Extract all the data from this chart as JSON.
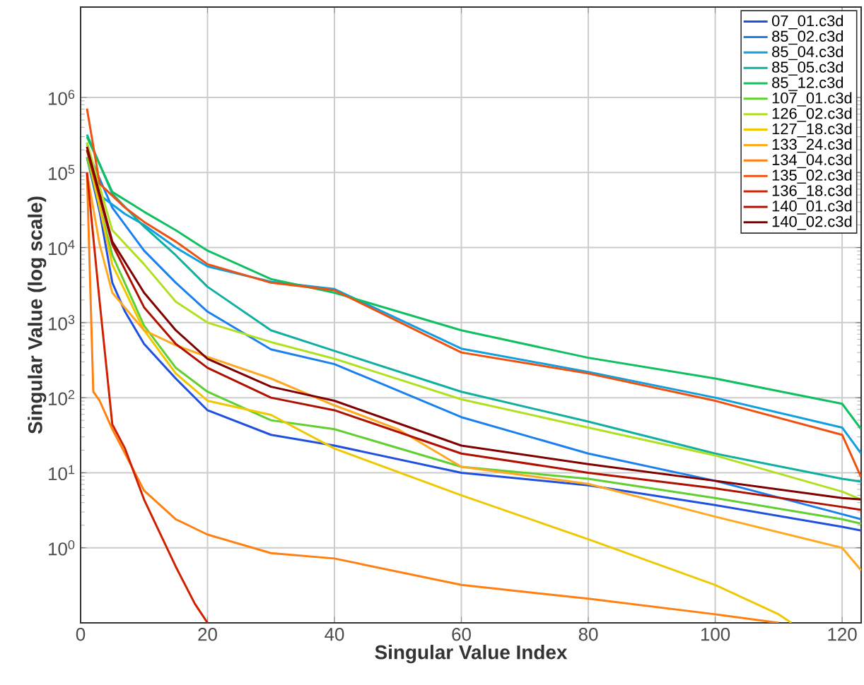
{
  "chart_data": {
    "type": "line",
    "xlabel": "Singular Value Index",
    "ylabel": "Singular Value (log scale)",
    "log": "y",
    "grid": true,
    "legend": "top right",
    "marker": "none",
    "line_style": "solid",
    "xlim": [
      0,
      123
    ],
    "ylim": [
      0.1,
      16000000
    ],
    "xticks": [
      0,
      20,
      40,
      60,
      80,
      100,
      120
    ],
    "yticks": [
      {
        "value": 1,
        "label": "10$^{0}$"
      },
      {
        "value": 10,
        "label": "10$^{1}$"
      },
      {
        "value": 100,
        "label": "10$^{2}$"
      },
      {
        "value": 1000,
        "label": "10$^{3}$"
      },
      {
        "value": 10000,
        "label": "10$^{4}$"
      },
      {
        "value": 100000,
        "label": "10$^{5}$"
      },
      {
        "value": 1000000,
        "label": "10$^{6}$"
      }
    ],
    "series": [
      {
        "name": "07_01.c3d",
        "color": "#2050e0",
        "x": [
          1,
          3,
          5,
          7,
          10,
          15,
          20,
          30,
          40,
          60,
          80,
          100,
          120,
          123
        ],
        "values": [
          160000,
          30000,
          3400,
          1400,
          520,
          180,
          68,
          32,
          23,
          10,
          6.8,
          3.7,
          1.9,
          1.7
        ]
      },
      {
        "name": "85_02.c3d",
        "color": "#1a80f0",
        "x": [
          1,
          5,
          10,
          15,
          20,
          30,
          40,
          60,
          80,
          100,
          120,
          123
        ],
        "values": [
          200000,
          34000,
          9100,
          3400,
          1400,
          440,
          280,
          55,
          18,
          7.8,
          2.8,
          2.4
        ]
      },
      {
        "name": "85_04.c3d",
        "color": "#10a0e0",
        "x": [
          1,
          3,
          7,
          10,
          15,
          20,
          30,
          40,
          60,
          80,
          100,
          120,
          123
        ],
        "values": [
          250000,
          50000,
          28000,
          20000,
          10000,
          5600,
          3500,
          2800,
          450,
          220,
          100,
          40,
          18
        ]
      },
      {
        "name": "85_05.c3d",
        "color": "#10b0a0",
        "x": [
          1,
          5,
          10,
          15,
          20,
          30,
          40,
          60,
          80,
          100,
          120,
          123
        ],
        "values": [
          320000,
          52000,
          19000,
          7900,
          3000,
          790,
          420,
          120,
          48,
          18,
          8.3,
          7.6
        ]
      },
      {
        "name": "85_12.c3d",
        "color": "#10c060",
        "x": [
          1,
          5,
          10,
          15,
          20,
          30,
          40,
          60,
          80,
          100,
          120,
          123
        ],
        "values": [
          300000,
          55000,
          30000,
          17000,
          9100,
          3800,
          2500,
          790,
          340,
          180,
          83,
          38
        ]
      },
      {
        "name": "107_01.c3d",
        "color": "#60d030",
        "x": [
          1,
          5,
          10,
          15,
          20,
          30,
          40,
          60,
          80,
          100,
          120,
          123
        ],
        "values": [
          160000,
          7900,
          910,
          250,
          120,
          50,
          38,
          12,
          8.3,
          4.6,
          2.4,
          2.1
        ]
      },
      {
        "name": "126_02.c3d",
        "color": "#b0e020",
        "x": [
          1,
          5,
          10,
          15,
          20,
          30,
          40,
          60,
          80,
          100,
          120,
          123
        ],
        "values": [
          250000,
          17000,
          6000,
          1900,
          1000,
          550,
          330,
          95,
          40,
          17,
          5.6,
          4.4
        ]
      },
      {
        "name": "127_18.c3d",
        "color": "#f0c800",
        "x": [
          1,
          5,
          10,
          15,
          20,
          30,
          40,
          60,
          80,
          100,
          110,
          112
        ],
        "values": [
          200000,
          5900,
          790,
          210,
          91,
          59,
          21,
          5.0,
          1.3,
          0.32,
          0.13,
          0.1
        ]
      },
      {
        "name": "133_24.c3d",
        "color": "#ffa820",
        "x": [
          1,
          3,
          5,
          10,
          15,
          20,
          30,
          40,
          50,
          60,
          80,
          100,
          120,
          123
        ],
        "values": [
          100000,
          11000,
          2500,
          790,
          500,
          350,
          180,
          79,
          38,
          12,
          7.1,
          2.6,
          1.0,
          0.5
        ]
      },
      {
        "name": "134_04.c3d",
        "color": "#ff8010",
        "x": [
          1,
          2,
          3,
          5,
          7,
          10,
          15,
          20,
          30,
          40,
          60,
          80,
          100,
          110
        ],
        "values": [
          100000,
          120,
          91,
          38,
          18,
          5.8,
          2.4,
          1.5,
          0.85,
          0.72,
          0.32,
          0.21,
          0.13,
          0.1
        ]
      },
      {
        "name": "135_02.c3d",
        "color": "#f05010",
        "x": [
          1,
          3,
          7,
          10,
          15,
          20,
          30,
          40,
          60,
          80,
          100,
          120,
          123
        ],
        "values": [
          710000,
          71000,
          34000,
          22000,
          12000,
          6000,
          3400,
          2700,
          400,
          210,
          91,
          32,
          8.7
        ]
      },
      {
        "name": "136_18.c3d",
        "color": "#d02000",
        "x": [
          1,
          3,
          5,
          7,
          10,
          15,
          18,
          20
        ],
        "values": [
          100000,
          1900,
          44,
          21,
          4.4,
          0.56,
          0.18,
          0.1
        ]
      },
      {
        "name": "140_01.c3d",
        "color": "#b01000",
        "x": [
          1,
          5,
          10,
          15,
          20,
          30,
          40,
          60,
          80,
          100,
          120,
          123
        ],
        "values": [
          200000,
          11000,
          1600,
          520,
          250,
          100,
          68,
          18,
          10,
          6.2,
          3.5,
          3.2
        ]
      },
      {
        "name": "140_02.c3d",
        "color": "#800000",
        "x": [
          1,
          5,
          10,
          15,
          20,
          30,
          40,
          60,
          80,
          100,
          120,
          123
        ],
        "values": [
          220000,
          12000,
          2500,
          790,
          330,
          140,
          91,
          23,
          13,
          7.8,
          4.6,
          4.4
        ]
      }
    ]
  }
}
